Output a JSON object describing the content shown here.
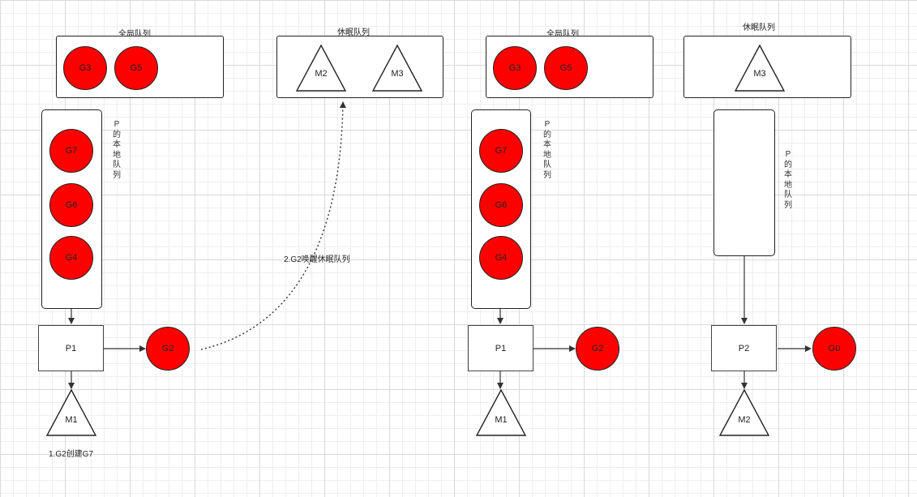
{
  "left": {
    "global_queue_title": "全局队列",
    "global_queue": [
      "G3",
      "G5"
    ],
    "sleep_queue_title": "休眠队列",
    "sleep_queue": [
      "M2",
      "M3"
    ],
    "local_queue_label": "P的本地队列",
    "local_queue": [
      "G7",
      "G6",
      "G4"
    ],
    "processor": "P1",
    "running_g": "G2",
    "machine": "M1",
    "step1": "1.G2创建G7",
    "step2": "2.G2唤醒休眠队列"
  },
  "middle": {
    "global_queue_title": "全局队列",
    "global_queue": [
      "G3",
      "G5"
    ],
    "local_queue_label": "P的本地队列",
    "local_queue": [
      "G7",
      "G6",
      "G4"
    ],
    "processor": "P1",
    "running_g": "G2",
    "machine": "M1"
  },
  "right": {
    "sleep_queue_title": "休眠队列",
    "sleep_queue": [
      "M3"
    ],
    "local_queue_label": "P的本地队列",
    "local_queue": [],
    "processor": "P2",
    "running_g": "G0",
    "machine": "M2"
  },
  "colors": {
    "goroutine_fill": "#ff0000",
    "stroke": "#222222"
  }
}
